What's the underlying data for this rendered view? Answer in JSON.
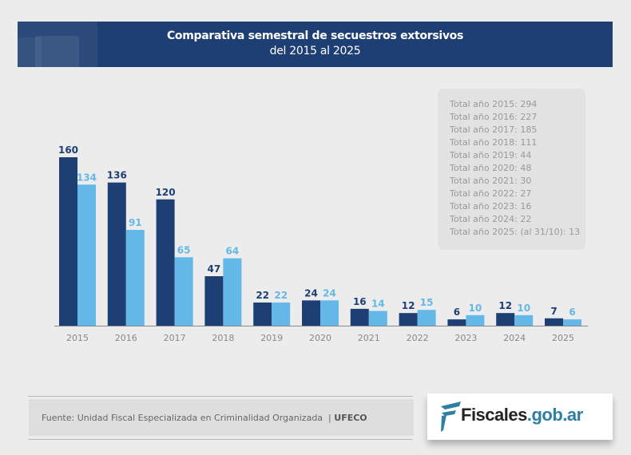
{
  "header": {
    "title": "Comparativa semestral de secuestros extorsivos",
    "subtitle": "del 2015 al 2025"
  },
  "totals": [
    "Total año 2015: 294",
    "Total año 2016: 227",
    "Total año 2017: 185",
    "Total año 2018: 111",
    "Total año 2019: 44",
    "Total año 2020: 48",
    "Total año 2021: 30",
    "Total año 2022: 27",
    "Total año 2023: 16",
    "Total año 2024: 22",
    "Total año 2025: (al 31/10): 13"
  ],
  "chart_data": {
    "type": "bar",
    "title": "Comparativa semestral de secuestros extorsivos",
    "subtitle": "del 2015 al 2025",
    "categories": [
      "2015",
      "2016",
      "2017",
      "2018",
      "2019",
      "2020",
      "2021",
      "2022",
      "2023",
      "2024",
      "2025"
    ],
    "series": [
      {
        "values": [
          160,
          136,
          120,
          47,
          22,
          24,
          16,
          12,
          6,
          12,
          7
        ],
        "color": "#1e3f73"
      },
      {
        "values": [
          134,
          91,
          65,
          64,
          22,
          24,
          14,
          15,
          10,
          10,
          6
        ],
        "color": "#63b8e8"
      }
    ],
    "ylim": [
      0,
      160
    ],
    "grid": false,
    "data_labels": true
  },
  "footer": {
    "source": "Fuente: Unidad Fiscal Especializada en Criminalidad Organizada",
    "source_tag": "UFECO",
    "logo_main": "Fiscales",
    "logo_domain": ".gob.ar"
  }
}
